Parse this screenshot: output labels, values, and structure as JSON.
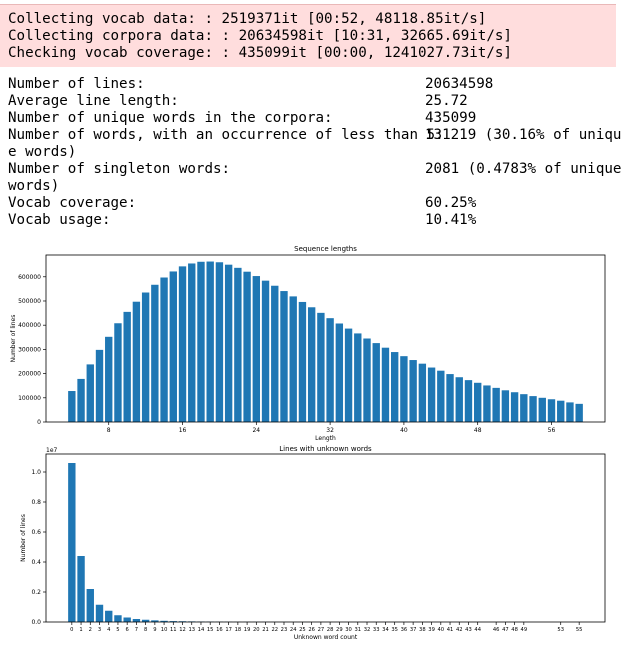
{
  "stderr_lines": [
    "Collecting vocab data: : 2519371it [00:52, 48118.85it/s]",
    "Collecting corpora data: : 20634598it [10:31, 32665.69it/s]",
    "Checking vocab coverage: : 435099it [00:00, 1241027.73it/s]"
  ],
  "stats": [
    {
      "label": "Number of lines:",
      "value": "20634598"
    },
    {
      "label": "Average line length:",
      "value": "25.72"
    },
    {
      "label": "Number of unique words in the corpora:",
      "value": "435099"
    },
    {
      "label": "Number of words, with an occurrence of less than 5:",
      "value": "131219 (30.16% of uniqu",
      "wrap": "e words)"
    },
    {
      "label": "Number of singleton words:",
      "value": "2081 (0.4783% of unique",
      "wrap": "words)"
    },
    {
      "label": "Vocab coverage:",
      "value": "60.25%"
    },
    {
      "label": "Vocab usage:",
      "value": "10.41%"
    }
  ],
  "chart_data": [
    {
      "type": "bar",
      "title": "Sequence lengths",
      "xlabel": "Length",
      "ylabel": "Number of lines",
      "x": [
        4,
        5,
        6,
        7,
        8,
        9,
        10,
        11,
        12,
        13,
        14,
        15,
        16,
        17,
        18,
        19,
        20,
        21,
        22,
        23,
        24,
        25,
        26,
        27,
        28,
        29,
        30,
        31,
        32,
        33,
        34,
        35,
        36,
        37,
        38,
        39,
        40,
        41,
        42,
        43,
        44,
        45,
        46,
        47,
        48,
        49,
        50,
        51,
        52,
        53,
        54,
        55,
        56,
        57,
        58,
        59
      ],
      "values": [
        128000,
        178000,
        238000,
        298000,
        352000,
        408000,
        455000,
        497000,
        535000,
        567000,
        597000,
        622000,
        643000,
        655000,
        662000,
        663000,
        660000,
        650000,
        637000,
        621000,
        603000,
        584000,
        563000,
        541000,
        519000,
        496000,
        474000,
        451000,
        429000,
        407000,
        386000,
        366000,
        345000,
        326000,
        307000,
        289000,
        272000,
        256000,
        241000,
        225000,
        212000,
        198000,
        185000,
        173000,
        162000,
        151000,
        141000,
        131000,
        123000,
        115000,
        107000,
        100000,
        94000,
        88000,
        81000,
        75000
      ],
      "xticks": [
        "8",
        "16",
        "24",
        "32",
        "40",
        "48",
        "56"
      ],
      "yticks": [
        "0",
        "100000",
        "200000",
        "300000",
        "400000",
        "500000",
        "600000"
      ],
      "ylim": [
        0,
        690000
      ]
    },
    {
      "type": "bar",
      "title": "Lines with unknown words",
      "xlabel": "Unknown word count",
      "ylabel": "Number of lines",
      "offset_label": "1e7",
      "categories": [
        "0",
        "1",
        "2",
        "3",
        "4",
        "5",
        "6",
        "7",
        "8",
        "9",
        "10",
        "11",
        "12",
        "13",
        "14",
        "15",
        "16",
        "17",
        "18",
        "19",
        "20",
        "21",
        "22",
        "23",
        "24",
        "25",
        "26",
        "27",
        "28",
        "29",
        "30",
        "31",
        "32",
        "33",
        "34",
        "35",
        "36",
        "37",
        "38",
        "39",
        "40",
        "41",
        "42",
        "43",
        "44",
        "46",
        "47",
        "48",
        "49",
        "53",
        "55"
      ],
      "values": [
        1.06,
        0.44,
        0.22,
        0.115,
        0.075,
        0.045,
        0.03,
        0.02,
        0.015,
        0.011,
        0.008,
        0.006,
        0.005,
        0.004,
        0.003,
        0.0025,
        0.002,
        0.0015,
        0.001,
        0.001,
        0.0008,
        0.0006,
        0.0005,
        0.0004,
        0.0003,
        0.0003,
        0.0002,
        0.0002,
        0.0002,
        0.0001,
        0.0001,
        0.0001,
        0.0001,
        0.0001,
        0.0001,
        0,
        0,
        0,
        0,
        0,
        0,
        0,
        0,
        0,
        0,
        0,
        0,
        0,
        0,
        0,
        0
      ],
      "yticks": [
        "0.0",
        "0.2",
        "0.4",
        "0.6",
        "0.8",
        "1.0"
      ],
      "ylim": [
        0,
        1.12
      ]
    }
  ],
  "colors": {
    "bar": "#1f77b4",
    "stderr_bg": "#ffdddd"
  }
}
